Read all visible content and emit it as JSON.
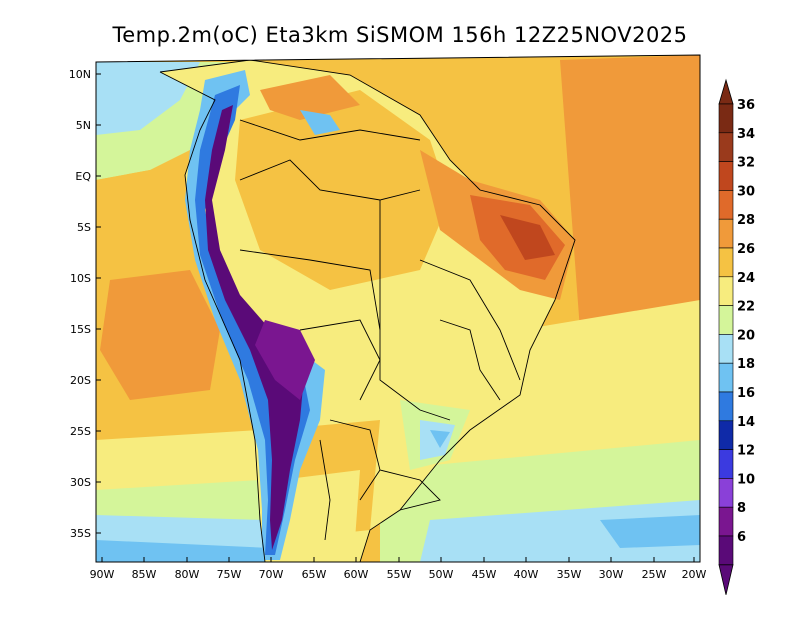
{
  "title": "Temp.2m(oC) Eta3km SiSMOM 156h 12Z25NOV2025",
  "lat_labels": [
    "10N",
    "5N",
    "EQ",
    "5S",
    "10S",
    "15S",
    "20S",
    "25S",
    "30S",
    "35S"
  ],
  "lon_labels": [
    "90W",
    "85W",
    "80W",
    "75W",
    "70W",
    "65W",
    "60W",
    "55W",
    "50W",
    "45W",
    "40W",
    "35W",
    "30W",
    "25W",
    "20W"
  ],
  "colorbar": {
    "labels": [
      "36",
      "34",
      "32",
      "30",
      "28",
      "26",
      "24",
      "22",
      "20",
      "18",
      "16",
      "14",
      "12",
      "10",
      "8",
      "6"
    ],
    "colors": [
      "#7a2a14",
      "#9a3a1c",
      "#c0471e",
      "#e06a2a",
      "#f09a3a",
      "#f5c243",
      "#f7ec7e",
      "#d4f59a",
      "#a8e0f5",
      "#6fc2f2",
      "#2f7ae0",
      "#0f2aa8",
      "#3b3ae0",
      "#8a40d8",
      "#7a1690",
      "#5a0a78"
    ]
  },
  "chart_data": {
    "type": "heatmap",
    "variable": "2 m air temperature",
    "units": "oC",
    "model": "Eta3km SiSMOM",
    "forecast_hour": 156,
    "valid_time": "12Z25NOV2025",
    "lon_range": [
      -90,
      -20
    ],
    "lat_range": [
      -37,
      11
    ],
    "scale_range": [
      6,
      36
    ],
    "scale_step": 2
  }
}
